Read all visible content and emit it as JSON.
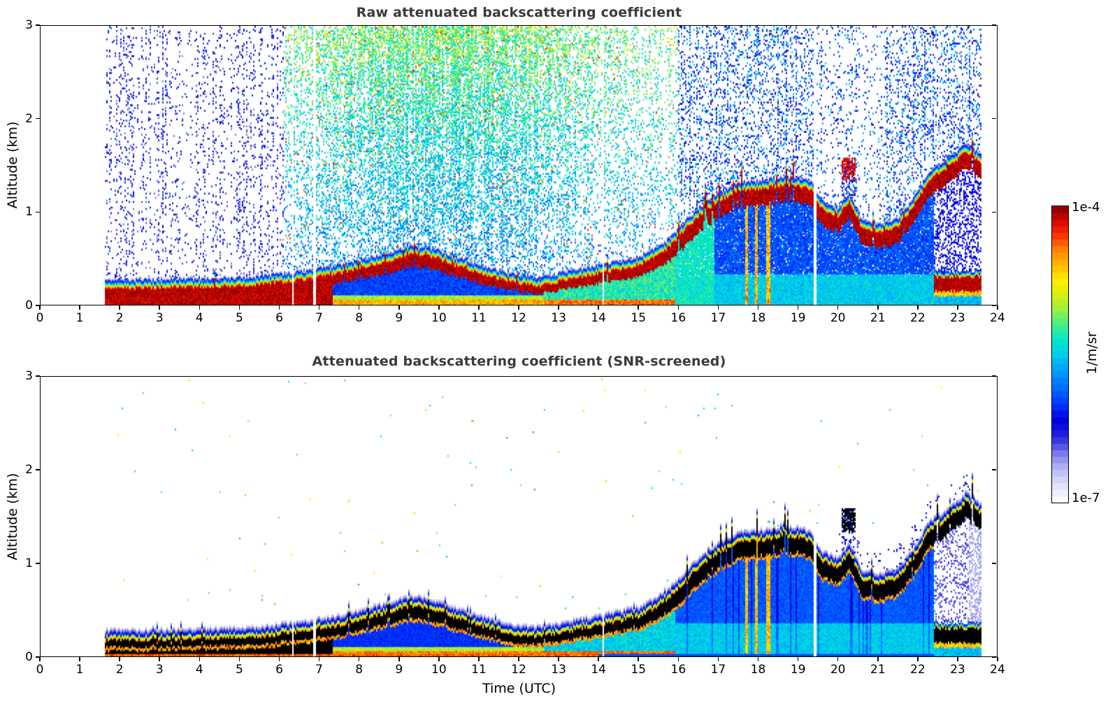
{
  "chart_data": {
    "type": "heatmap",
    "panels": [
      {
        "title": "Raw attenuated backscattering coefficient",
        "ylabel": "Altitude (km)",
        "xlim": [
          0,
          24
        ],
        "ylim": [
          0,
          3
        ],
        "xticks": [
          0,
          1,
          2,
          3,
          4,
          5,
          6,
          7,
          8,
          9,
          10,
          11,
          12,
          13,
          14,
          15,
          16,
          17,
          18,
          19,
          20,
          21,
          22,
          23,
          24
        ],
        "yticks": [
          0,
          1,
          2,
          3
        ],
        "noise_screened": false
      },
      {
        "title": "Attenuated backscattering coefficient (SNR-screened)",
        "ylabel": "Altitude (km)",
        "xlabel": "Time (UTC)",
        "xlim": [
          0,
          24
        ],
        "ylim": [
          0,
          3
        ],
        "xticks": [
          0,
          1,
          2,
          3,
          4,
          5,
          6,
          7,
          8,
          9,
          10,
          11,
          12,
          13,
          14,
          15,
          16,
          17,
          18,
          19,
          20,
          21,
          22,
          23,
          24
        ],
        "yticks": [
          0,
          1,
          2,
          3
        ],
        "noise_screened": true
      }
    ],
    "colorbar": {
      "unit_label": "1/m/sr",
      "scale": "log",
      "levels": 45,
      "ticks": [
        {
          "label": "1e-4",
          "value": 1.0
        },
        {
          "label": "1e-7",
          "value": 0.0
        }
      ],
      "colormap": [
        [
          0.0,
          "#ffffff"
        ],
        [
          0.04,
          "#ebebfd"
        ],
        [
          0.08,
          "#d3d3fa"
        ],
        [
          0.12,
          "#b0b0f5"
        ],
        [
          0.16,
          "#8585ee"
        ],
        [
          0.2,
          "#4444e4"
        ],
        [
          0.24,
          "#1515dd"
        ],
        [
          0.28,
          "#0000e0"
        ],
        [
          0.33,
          "#0033ff"
        ],
        [
          0.38,
          "#0066ff"
        ],
        [
          0.44,
          "#0099ff"
        ],
        [
          0.5,
          "#00ccee"
        ],
        [
          0.55,
          "#00e8c8"
        ],
        [
          0.6,
          "#44ee88"
        ],
        [
          0.65,
          "#99ee44"
        ],
        [
          0.7,
          "#d6ee11"
        ],
        [
          0.75,
          "#ffee00"
        ],
        [
          0.8,
          "#ffbb00"
        ],
        [
          0.85,
          "#ff8800"
        ],
        [
          0.89,
          "#ff4400"
        ],
        [
          0.93,
          "#e81600"
        ],
        [
          0.97,
          "#b80000"
        ],
        [
          1.0,
          "#7e0000"
        ]
      ]
    },
    "time_utc_range": [
      1.6,
      23.6
    ],
    "gap_times_utc": [
      6.32,
      6.85,
      14.1,
      19.42
    ],
    "boundary_layer_top_km": {
      "t_utc": [
        1.6,
        2.5,
        3.5,
        4.5,
        5.5,
        6.5,
        7.5,
        8.3,
        9.0,
        9.4,
        9.8,
        10.5,
        11.2,
        12.0,
        12.5,
        13.2,
        14.0,
        15.0,
        15.6,
        16.0,
        16.5,
        17.0,
        17.5,
        18.2,
        18.8,
        19.3,
        19.6,
        20.0,
        20.3,
        20.6,
        21.0,
        21.5,
        21.9,
        22.3,
        22.7,
        23.0,
        23.2,
        23.35,
        23.6
      ],
      "km": [
        0.17,
        0.17,
        0.18,
        0.19,
        0.21,
        0.26,
        0.33,
        0.42,
        0.5,
        0.54,
        0.5,
        0.4,
        0.3,
        0.22,
        0.2,
        0.26,
        0.33,
        0.42,
        0.55,
        0.72,
        0.95,
        1.1,
        1.22,
        1.25,
        1.28,
        1.24,
        1.02,
        0.95,
        1.1,
        0.82,
        0.78,
        0.83,
        1.05,
        1.35,
        1.45,
        1.55,
        1.65,
        1.6,
        1.52
      ]
    },
    "secondary_low_layer": {
      "t_start_utc": 22.4,
      "t_end_utc": 23.6,
      "base_km": 0.14,
      "top_km": 0.3
    },
    "elevated_cloud_patch": {
      "t_start_utc": 20.08,
      "t_end_utc": 20.45,
      "base_km": 1.33,
      "top_km": 1.58
    },
    "precip_streak_times_utc": [
      17.7,
      17.95,
      18.25
    ]
  }
}
